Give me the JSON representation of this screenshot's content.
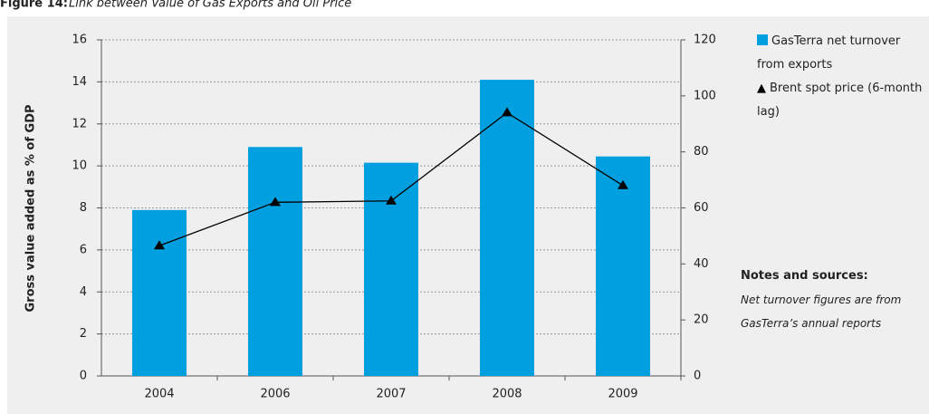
{
  "chart_data": {
    "type": "bar",
    "title": "Figure 14:",
    "subtitle": "Link between Value of Gas Exports and Oil Price",
    "y_label": "Gross value added as % of GDP",
    "categories": [
      "2004",
      "2006",
      "2007",
      "2008",
      "2009"
    ],
    "series": [
      {
        "name": "GasTerra net turnover from exports",
        "type": "bar",
        "color": "#009fdf",
        "values": [
          7.9,
          10.9,
          10.15,
          14.1,
          10.45
        ]
      },
      {
        "name": "Brent spot price (6-month lag)",
        "type": "line",
        "axis": "y2",
        "color": "#000000",
        "values": [
          46.5,
          62,
          62.5,
          94,
          68
        ]
      }
    ],
    "ylim": [
      0,
      16
    ],
    "yticks": [
      0,
      2,
      4,
      6,
      8,
      10,
      12,
      14,
      16
    ],
    "y2lim": [
      0,
      120
    ],
    "y2ticks": [
      0,
      20,
      40,
      60,
      80,
      100,
      120
    ],
    "grid": true,
    "legend": "right",
    "notes": {
      "heading": "Notes and sources:",
      "text": "Net turnover figures are from GasTerra’s annual reports"
    }
  }
}
